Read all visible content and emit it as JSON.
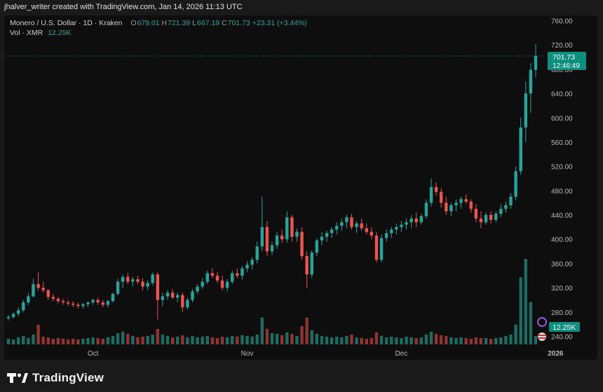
{
  "header": {
    "text": "jhalver_writer created with TradingView.com, Jan 14, 2026 11:13 UTC"
  },
  "legend": {
    "symbol": "Monero / U.S. Dollar · 1D · Kraken",
    "o_label": "O",
    "open": "679.01",
    "h_label": "H",
    "high": "721.39",
    "l_label": "L",
    "low": "667.19",
    "c_label": "C",
    "close": "701.73",
    "change": "+23.31 (+3.44%)",
    "vol_label": "Vol · XMR",
    "vol_value": "12.25K"
  },
  "price_tag": {
    "price": "701.73",
    "countdown": "12:46:49"
  },
  "vol_tag": "12.25K",
  "footer": {
    "brand": "TradingView"
  },
  "colors": {
    "up": "#26a69a",
    "down": "#ef5350",
    "bg": "#0e0e0e",
    "accent": "#0c8f7e"
  },
  "chart_data": {
    "type": "candlestick",
    "y_ticks": [
      "760.00",
      "720.00",
      "680.00",
      "640.00",
      "600.00",
      "560.00",
      "520.00",
      "480.00",
      "440.00",
      "400.00",
      "360.00",
      "320.00",
      "280.00",
      "240.00"
    ],
    "ylim": [
      236,
      764
    ],
    "x_labels": [
      "Oct",
      "Nov",
      "Dec",
      "2026"
    ],
    "x_label_index": [
      17,
      48,
      79,
      110
    ],
    "last_price": 701.73,
    "grid": false,
    "candles": [
      [
        270,
        275,
        266,
        272,
        8
      ],
      [
        272,
        280,
        269,
        277,
        7
      ],
      [
        277,
        288,
        273,
        283,
        10
      ],
      [
        283,
        300,
        280,
        296,
        12
      ],
      [
        296,
        312,
        292,
        306,
        9
      ],
      [
        306,
        335,
        304,
        326,
        14
      ],
      [
        326,
        346,
        316,
        320,
        28
      ],
      [
        320,
        330,
        312,
        316,
        11
      ],
      [
        316,
        318,
        300,
        305,
        10
      ],
      [
        305,
        310,
        298,
        302,
        8
      ],
      [
        302,
        305,
        294,
        298,
        9
      ],
      [
        298,
        302,
        292,
        296,
        8
      ],
      [
        296,
        300,
        290,
        294,
        7
      ],
      [
        294,
        298,
        288,
        292,
        8
      ],
      [
        292,
        296,
        286,
        290,
        7
      ],
      [
        290,
        295,
        285,
        293,
        8
      ],
      [
        293,
        298,
        288,
        296,
        9
      ],
      [
        296,
        302,
        292,
        300,
        10
      ],
      [
        300,
        304,
        292,
        296,
        9
      ],
      [
        296,
        300,
        288,
        292,
        8
      ],
      [
        292,
        300,
        288,
        298,
        10
      ],
      [
        298,
        312,
        296,
        310,
        12
      ],
      [
        310,
        335,
        308,
        330,
        16
      ],
      [
        330,
        342,
        320,
        338,
        18
      ],
      [
        338,
        345,
        326,
        330,
        15
      ],
      [
        330,
        338,
        322,
        334,
        12
      ],
      [
        334,
        340,
        326,
        330,
        10
      ],
      [
        330,
        336,
        316,
        322,
        11
      ],
      [
        322,
        332,
        316,
        328,
        12
      ],
      [
        328,
        345,
        324,
        342,
        14
      ],
      [
        342,
        346,
        268,
        300,
        22
      ],
      [
        300,
        312,
        290,
        306,
        14
      ],
      [
        306,
        316,
        300,
        312,
        12
      ],
      [
        312,
        318,
        302,
        304,
        10
      ],
      [
        304,
        312,
        296,
        308,
        11
      ],
      [
        308,
        312,
        280,
        288,
        13
      ],
      [
        288,
        304,
        284,
        300,
        10
      ],
      [
        300,
        318,
        296,
        314,
        12
      ],
      [
        314,
        326,
        310,
        322,
        10
      ],
      [
        322,
        336,
        318,
        330,
        11
      ],
      [
        330,
        348,
        326,
        344,
        12
      ],
      [
        344,
        352,
        336,
        340,
        10
      ],
      [
        340,
        346,
        328,
        332,
        9
      ],
      [
        332,
        340,
        316,
        320,
        11
      ],
      [
        320,
        334,
        314,
        330,
        10
      ],
      [
        330,
        348,
        326,
        344,
        12
      ],
      [
        344,
        352,
        336,
        340,
        11
      ],
      [
        340,
        356,
        334,
        352,
        13
      ],
      [
        352,
        364,
        346,
        358,
        12
      ],
      [
        358,
        370,
        350,
        366,
        11
      ],
      [
        366,
        396,
        360,
        388,
        14
      ],
      [
        388,
        470,
        380,
        420,
        38
      ],
      [
        420,
        430,
        372,
        380,
        22
      ],
      [
        380,
        396,
        374,
        390,
        16
      ],
      [
        390,
        412,
        384,
        406,
        15
      ],
      [
        406,
        416,
        394,
        400,
        13
      ],
      [
        400,
        446,
        394,
        436,
        17
      ],
      [
        436,
        440,
        396,
        404,
        15
      ],
      [
        404,
        418,
        396,
        412,
        12
      ],
      [
        412,
        420,
        366,
        372,
        26
      ],
      [
        372,
        380,
        320,
        342,
        38
      ],
      [
        342,
        382,
        336,
        378,
        20
      ],
      [
        378,
        402,
        372,
        398,
        15
      ],
      [
        398,
        412,
        390,
        404,
        12
      ],
      [
        404,
        414,
        396,
        410,
        11
      ],
      [
        410,
        420,
        402,
        416,
        10
      ],
      [
        416,
        428,
        408,
        422,
        11
      ],
      [
        422,
        434,
        414,
        428,
        10
      ],
      [
        428,
        440,
        418,
        436,
        12
      ],
      [
        436,
        442,
        416,
        420,
        14
      ],
      [
        420,
        430,
        410,
        426,
        10
      ],
      [
        426,
        434,
        414,
        418,
        9
      ],
      [
        418,
        426,
        408,
        412,
        8
      ],
      [
        412,
        420,
        400,
        406,
        9
      ],
      [
        406,
        412,
        362,
        366,
        17
      ],
      [
        366,
        408,
        362,
        402,
        12
      ],
      [
        402,
        416,
        396,
        410,
        10
      ],
      [
        410,
        420,
        402,
        416,
        11
      ],
      [
        416,
        426,
        408,
        420,
        10
      ],
      [
        420,
        430,
        412,
        424,
        9
      ],
      [
        424,
        434,
        416,
        428,
        11
      ],
      [
        428,
        440,
        418,
        434,
        10
      ],
      [
        434,
        444,
        420,
        428,
        9
      ],
      [
        428,
        442,
        424,
        438,
        10
      ],
      [
        438,
        466,
        434,
        460,
        14
      ],
      [
        460,
        500,
        454,
        486,
        18
      ],
      [
        486,
        494,
        472,
        478,
        15
      ],
      [
        478,
        484,
        452,
        460,
        13
      ],
      [
        460,
        470,
        440,
        446,
        12
      ],
      [
        446,
        460,
        438,
        456,
        10
      ],
      [
        456,
        466,
        446,
        460,
        9
      ],
      [
        460,
        470,
        450,
        466,
        10
      ],
      [
        466,
        474,
        458,
        462,
        9
      ],
      [
        462,
        466,
        444,
        450,
        8
      ],
      [
        450,
        458,
        428,
        434,
        10
      ],
      [
        434,
        446,
        418,
        428,
        9
      ],
      [
        428,
        444,
        424,
        440,
        9
      ],
      [
        440,
        446,
        426,
        432,
        8
      ],
      [
        432,
        446,
        428,
        442,
        9
      ],
      [
        442,
        458,
        436,
        450,
        10
      ],
      [
        450,
        462,
        444,
        456,
        12
      ],
      [
        456,
        476,
        450,
        470,
        14
      ],
      [
        470,
        520,
        464,
        512,
        28
      ],
      [
        512,
        600,
        506,
        584,
        95
      ],
      [
        584,
        660,
        560,
        640,
        121
      ],
      [
        640,
        690,
        608,
        679,
        60
      ],
      [
        679,
        721,
        667,
        702,
        12
      ]
    ]
  }
}
